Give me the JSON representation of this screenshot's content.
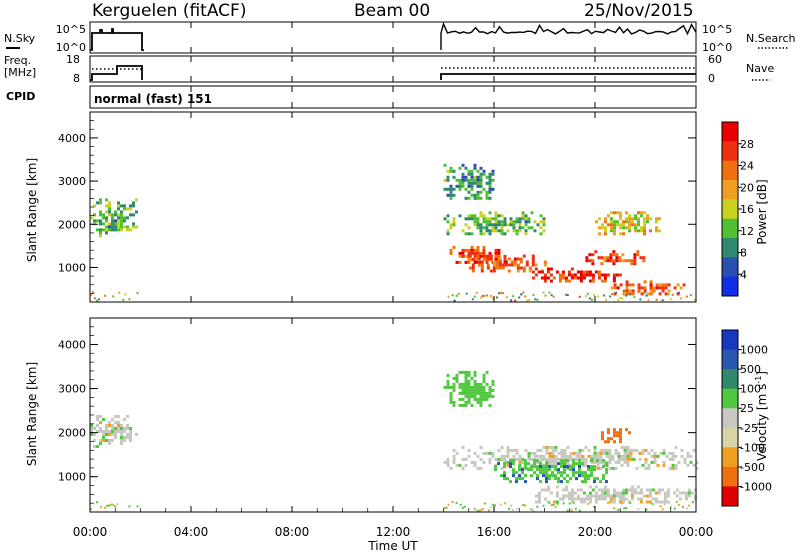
{
  "header": {
    "station": "Kerguelen (fitACF)",
    "beam": "Beam 00",
    "date": "25/Nov/2015"
  },
  "panels": {
    "nsky": {
      "label": "N.Sky",
      "ticks": [
        "10^5",
        "10^0"
      ]
    },
    "nsearch": {
      "label": "N.Search",
      "ticks": [
        "10^5",
        "10^0"
      ]
    },
    "freq": {
      "label_line1": "Freq.",
      "label_line2": "[MHz]",
      "ticks": [
        "18",
        "8"
      ]
    },
    "nave": {
      "label": "Nave",
      "ticks": [
        "60",
        "0"
      ]
    },
    "cpid": {
      "label": "CPID",
      "text": "normal (fast) 151"
    }
  },
  "colors": {
    "power_scale": [
      "#1030e8",
      "#2850b0",
      "#2f8870",
      "#50c030",
      "#c8d020",
      "#f0a020",
      "#f07010",
      "#f03010",
      "#e80000"
    ],
    "velocity_scale": [
      "#1838c0",
      "#2858b0",
      "#2f8868",
      "#50c840",
      "#c8c8c0",
      "#d8d4a8",
      "#f0a020",
      "#f07010",
      "#e00000"
    ]
  },
  "chart_data": [
    {
      "type": "heatmap",
      "name": "power",
      "ylabel": "Slant Range [km]",
      "ylim": [
        200,
        4600
      ],
      "yticks": [
        1000,
        2000,
        3000,
        4000
      ],
      "colorbar_label": "Power [dB]",
      "colorbar_ticks": [
        "4",
        "8",
        "12",
        "16",
        "20",
        "24",
        "28"
      ],
      "colorbar_range": [
        0,
        32
      ],
      "regions": [
        {
          "t": [
            0.0,
            1.9
          ],
          "range": [
            1700,
            2600
          ],
          "value": 12
        },
        {
          "t": [
            14.0,
            16.5
          ],
          "range": [
            1100,
            1500
          ],
          "value": 26
        },
        {
          "t": [
            15.0,
            18.0
          ],
          "range": [
            900,
            1300
          ],
          "value": 24
        },
        {
          "t": [
            17.5,
            21.0
          ],
          "range": [
            700,
            1000
          ],
          "value": 28
        },
        {
          "t": [
            19.5,
            22.0
          ],
          "range": [
            1100,
            1400
          ],
          "value": 26
        },
        {
          "t": [
            20.0,
            22.5
          ],
          "range": [
            1800,
            2300
          ],
          "value": 18
        },
        {
          "t": [
            14.0,
            18.0
          ],
          "range": [
            1800,
            2300
          ],
          "value": 12
        },
        {
          "t": [
            14.0,
            16.0
          ],
          "range": [
            2600,
            3400
          ],
          "value": 10
        },
        {
          "t": [
            20.5,
            23.5
          ],
          "range": [
            400,
            700
          ],
          "value": 24
        }
      ]
    },
    {
      "type": "heatmap",
      "name": "velocity",
      "ylabel": "Slant Range [km]",
      "xlabel": "Time UT",
      "ylim": [
        200,
        4600
      ],
      "yticks": [
        1000,
        2000,
        3000,
        4000
      ],
      "xlim": [
        0,
        24
      ],
      "xticks": [
        "00:00",
        "04:00",
        "08:00",
        "12:00",
        "16:00",
        "20:00",
        "00:00"
      ],
      "colorbar_label": "Velocity [m s",
      "colorbar_label_sup": "-1",
      "colorbar_label_end": "]",
      "colorbar_ticks": [
        "1000",
        "500",
        "100",
        "25",
        "-25",
        "-100",
        "-500",
        "-1000"
      ],
      "regions": [
        {
          "t": [
            0.0,
            1.9
          ],
          "range": [
            1700,
            2400
          ],
          "value": 0
        },
        {
          "t": [
            14.0,
            24.0
          ],
          "range": [
            1200,
            1700
          ],
          "value": 0
        },
        {
          "t": [
            16.0,
            20.5
          ],
          "range": [
            900,
            1400
          ],
          "value": 80
        },
        {
          "t": [
            20.0,
            21.5
          ],
          "range": [
            1800,
            2100
          ],
          "value": -150
        },
        {
          "t": [
            14.0,
            16.0
          ],
          "range": [
            2600,
            3400
          ],
          "value": 60
        },
        {
          "t": [
            17.5,
            24.0
          ],
          "range": [
            400,
            800
          ],
          "value": 0
        }
      ]
    }
  ]
}
